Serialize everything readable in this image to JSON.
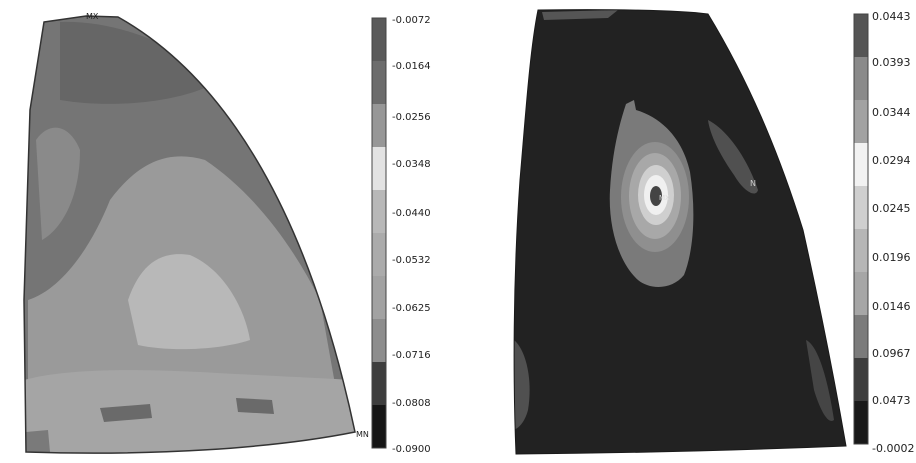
{
  "left_plot": {
    "max_marker": "MX",
    "min_marker": "MN",
    "legend_labels": [
      "-0.0072",
      "-0.0164",
      "-0.0256",
      "-0.0348",
      "-0.0440",
      "-0.0532",
      "-0.0625",
      "-0.0716",
      "-0.0808",
      "-0.0900"
    ],
    "legend_colors": [
      "#5a5a5a",
      "#6c6c6c",
      "#979797",
      "#e2e2e2",
      "#b8b8b8",
      "#ababab",
      "#a2a2a2",
      "#8d8d8d",
      "#3e3e3e",
      "#161616"
    ]
  },
  "right_plot": {
    "max_marker": "MX",
    "min_marker": "N",
    "legend_labels": [
      "0.0443",
      "0.0393",
      "0.0344",
      "0.0294",
      "0.0245",
      "0.0196",
      "0.0146",
      "0.0967",
      "0.0473",
      "-0.0002"
    ],
    "legend_colors": [
      "#555555",
      "#8a8a8a",
      "#a2a2a2",
      "#f2f2f2",
      "#cfcfcf",
      "#b6b6b6",
      "#a6a6a6",
      "#7b7b7b",
      "#3d3d3d",
      "#191919"
    ]
  }
}
